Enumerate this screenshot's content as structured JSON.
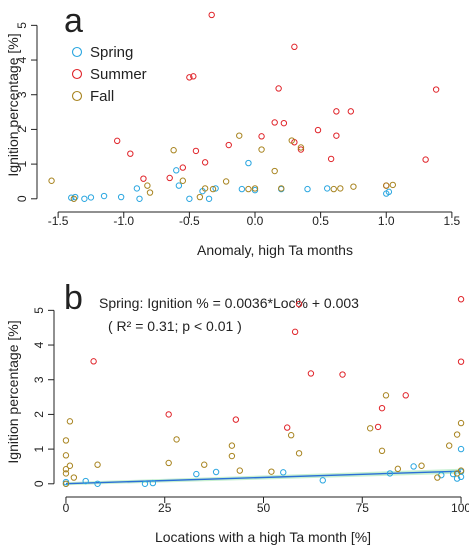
{
  "colors": {
    "spring": "#2aa6e0",
    "summer": "#e0242a",
    "fall": "#a88420",
    "fit_line": "#2a6fd6",
    "fit_band": "#b9ecc6",
    "axis": "#222222"
  },
  "chart_data": [
    {
      "type": "scatter",
      "panel_label": "a",
      "xlabel": "Anomaly, high Ta months",
      "ylabel": "Ignition percentage [%]",
      "xlim": [
        -1.6,
        1.6
      ],
      "ylim": [
        -0.15,
        5.5
      ],
      "xticks": [
        -1.5,
        -1.0,
        -0.5,
        0.0,
        0.5,
        1.0,
        1.5
      ],
      "xtick_labels": [
        "-1.5",
        "-1.0",
        "-0.5",
        "0.0",
        "0.5",
        "1.0",
        "1.5"
      ],
      "yticks": [
        0,
        1,
        2,
        3,
        4,
        5
      ],
      "ytick_labels": [
        "0",
        "1",
        "2",
        "3",
        "4",
        "5"
      ],
      "grid": false,
      "legend_position": "top-left",
      "series": [
        {
          "name": "Spring",
          "color_key": "spring",
          "points": [
            [
              -1.4,
              0.03
            ],
            [
              -1.37,
              0.05
            ],
            [
              -1.3,
              0.0
            ],
            [
              -1.25,
              0.04
            ],
            [
              -1.15,
              0.08
            ],
            [
              -1.02,
              0.05
            ],
            [
              -0.9,
              0.3
            ],
            [
              -0.88,
              0.0
            ],
            [
              -0.6,
              0.82
            ],
            [
              -0.58,
              0.38
            ],
            [
              -0.5,
              0.0
            ],
            [
              -0.4,
              0.22
            ],
            [
              -0.35,
              0.0
            ],
            [
              -0.3,
              0.3
            ],
            [
              -0.1,
              0.28
            ],
            [
              -0.05,
              1.03
            ],
            [
              0.0,
              0.25
            ],
            [
              0.2,
              0.28
            ],
            [
              0.4,
              0.28
            ],
            [
              0.55,
              0.3
            ],
            [
              1.0,
              0.15
            ],
            [
              1.02,
              0.2
            ]
          ]
        },
        {
          "name": "Summer",
          "color_key": "summer",
          "points": [
            [
              -1.05,
              1.67
            ],
            [
              -0.95,
              1.3
            ],
            [
              -0.85,
              0.58
            ],
            [
              -0.65,
              0.6
            ],
            [
              -0.55,
              0.9
            ],
            [
              -0.5,
              3.5
            ],
            [
              -0.47,
              3.53
            ],
            [
              -0.45,
              1.38
            ],
            [
              -0.38,
              1.05
            ],
            [
              -0.33,
              5.3
            ],
            [
              -0.2,
              1.55
            ],
            [
              0.05,
              1.8
            ],
            [
              0.15,
              2.2
            ],
            [
              0.18,
              3.18
            ],
            [
              0.22,
              2.18
            ],
            [
              0.3,
              4.38
            ],
            [
              0.3,
              1.63
            ],
            [
              0.35,
              1.42
            ],
            [
              0.48,
              1.98
            ],
            [
              0.58,
              1.15
            ],
            [
              0.62,
              1.82
            ],
            [
              0.62,
              2.52
            ],
            [
              0.73,
              2.52
            ],
            [
              1.0,
              0.38
            ],
            [
              1.3,
              1.13
            ],
            [
              1.38,
              3.15
            ]
          ]
        },
        {
          "name": "Fall",
          "color_key": "fall",
          "points": [
            [
              -1.55,
              0.52
            ],
            [
              -1.38,
              0.0
            ],
            [
              -0.82,
              0.38
            ],
            [
              -0.8,
              0.18
            ],
            [
              -0.62,
              1.4
            ],
            [
              -0.55,
              0.52
            ],
            [
              -0.42,
              0.05
            ],
            [
              -0.38,
              0.3
            ],
            [
              -0.32,
              0.28
            ],
            [
              -0.22,
              0.5
            ],
            [
              -0.12,
              1.82
            ],
            [
              -0.05,
              0.28
            ],
            [
              0.0,
              0.3
            ],
            [
              0.05,
              1.42
            ],
            [
              0.15,
              0.8
            ],
            [
              0.2,
              0.3
            ],
            [
              0.28,
              1.68
            ],
            [
              0.35,
              1.48
            ],
            [
              0.6,
              0.28
            ],
            [
              0.65,
              0.3
            ],
            [
              0.75,
              0.35
            ],
            [
              1.0,
              0.38
            ],
            [
              1.05,
              0.4
            ]
          ]
        }
      ]
    },
    {
      "type": "scatter",
      "panel_label": "b",
      "xlabel": "Locations with a high Ta month [%]",
      "ylabel": "Ignition percentage [%]",
      "xlim": [
        -1,
        101
      ],
      "ylim": [
        -0.15,
        5.5
      ],
      "xticks": [
        0,
        25,
        50,
        75,
        100
      ],
      "xtick_labels": [
        "0",
        "25",
        "50",
        "75",
        "100"
      ],
      "yticks": [
        0,
        1,
        2,
        3,
        4,
        5
      ],
      "ytick_labels": [
        "0",
        "1",
        "2",
        "3",
        "4",
        "5"
      ],
      "grid": false,
      "annotations": [
        "Spring: Ignition % = 0.0036*Loc% + 0.003",
        "( R² = 0.31; p < 0.01 )"
      ],
      "fit_line": {
        "slope": 0.0036,
        "intercept": 0.003,
        "x_range": [
          0,
          100
        ]
      },
      "series": [
        {
          "name": "Spring",
          "color_key": "spring",
          "points": [
            [
              0,
              0.0
            ],
            [
              0,
              0.05
            ],
            [
              5,
              0.08
            ],
            [
              8,
              0.0
            ],
            [
              20,
              0.0
            ],
            [
              22,
              0.02
            ],
            [
              33,
              0.28
            ],
            [
              38,
              0.34
            ],
            [
              55,
              0.33
            ],
            [
              65,
              0.1
            ],
            [
              82,
              0.3
            ],
            [
              88,
              0.5
            ],
            [
              95,
              0.25
            ],
            [
              98,
              0.28
            ],
            [
              99,
              0.15
            ],
            [
              100,
              0.2
            ],
            [
              100,
              0.35
            ],
            [
              100,
              1.0
            ]
          ]
        },
        {
          "name": "Summer",
          "color_key": "summer",
          "points": [
            [
              7,
              3.53
            ],
            [
              26,
              2.0
            ],
            [
              43,
              1.85
            ],
            [
              56,
              1.62
            ],
            [
              58,
              4.38
            ],
            [
              59,
              5.18
            ],
            [
              62,
              3.18
            ],
            [
              70,
              3.15
            ],
            [
              79,
              1.64
            ],
            [
              80,
              2.18
            ],
            [
              86,
              2.55
            ],
            [
              100,
              3.52
            ],
            [
              100,
              5.32
            ]
          ]
        },
        {
          "name": "Fall",
          "color_key": "fall",
          "points": [
            [
              0,
              0.0
            ],
            [
              0,
              0.3
            ],
            [
              0,
              0.42
            ],
            [
              0,
              0.82
            ],
            [
              0,
              1.25
            ],
            [
              1,
              1.8
            ],
            [
              1,
              0.52
            ],
            [
              2,
              0.18
            ],
            [
              8,
              0.55
            ],
            [
              26,
              0.6
            ],
            [
              28,
              1.28
            ],
            [
              35,
              0.55
            ],
            [
              42,
              0.8
            ],
            [
              42,
              1.1
            ],
            [
              44,
              0.38
            ],
            [
              52,
              0.35
            ],
            [
              57,
              1.4
            ],
            [
              59,
              0.88
            ],
            [
              77,
              1.6
            ],
            [
              80,
              0.95
            ],
            [
              81,
              2.55
            ],
            [
              84,
              0.43
            ],
            [
              90,
              0.52
            ],
            [
              94,
              0.18
            ],
            [
              97,
              1.1
            ],
            [
              99,
              0.3
            ],
            [
              99,
              1.42
            ],
            [
              100,
              1.75
            ],
            [
              100,
              0.38
            ]
          ]
        }
      ]
    }
  ]
}
